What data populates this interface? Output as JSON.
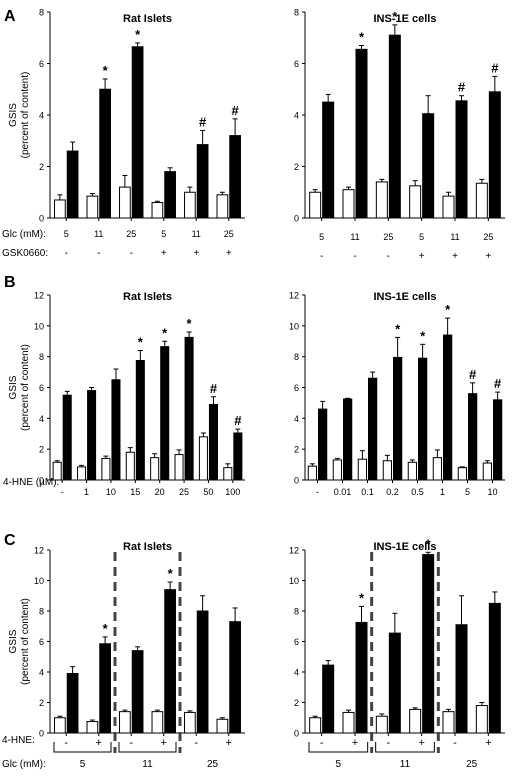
{
  "panels": [
    {
      "letter": "A"
    },
    {
      "letter": "B"
    },
    {
      "letter": "C"
    }
  ],
  "row_labels": {
    "A": [
      {
        "label": "Glc (mM):",
        "values": [
          "5",
          "11",
          "25",
          "5",
          "11",
          "25"
        ]
      },
      {
        "label": "GSK0660:",
        "values": [
          "-",
          "-",
          "-",
          "+",
          "+",
          "+"
        ]
      }
    ],
    "B": [
      {
        "label": "4-HNE (µM):"
      }
    ],
    "C": [
      {
        "label": "4-HNE:",
        "values": [
          "-",
          "+",
          "-",
          "+",
          "-",
          "+"
        ]
      },
      {
        "label": "Glc (mM):",
        "values": [
          "5",
          "11",
          "25"
        ]
      }
    ]
  },
  "chart_data": [
    {
      "id": "A-left",
      "type": "bar",
      "title": "Rat Islets",
      "ylabel": "GSIS\n(percent of content)",
      "ylim": [
        0,
        8
      ],
      "yticks": [
        0,
        2,
        4,
        6,
        8
      ],
      "categories": [
        "5",
        "11",
        "25",
        "5",
        "11",
        "25"
      ],
      "series": [
        {
          "color": "#ffffff",
          "values": [
            0.7,
            0.85,
            1.2,
            0.6,
            1.0,
            0.9
          ],
          "errors": [
            0.2,
            0.1,
            0.45,
            0.05,
            0.2,
            0.1
          ]
        },
        {
          "color": "#000000",
          "values": [
            2.6,
            5.0,
            6.65,
            1.8,
            2.85,
            3.2
          ],
          "errors": [
            0.35,
            0.4,
            0.15,
            0.15,
            0.55,
            0.65
          ]
        }
      ],
      "annotations": [
        "",
        "*",
        "*",
        "",
        "#",
        "#"
      ],
      "xticklabels": []
    },
    {
      "id": "A-right",
      "type": "bar",
      "title": "INS-1E cells",
      "ylim": [
        0,
        8
      ],
      "yticks": [
        0,
        2,
        4,
        6,
        8
      ],
      "categories": [
        "5",
        "11",
        "25",
        "5",
        "11",
        "25"
      ],
      "series": [
        {
          "color": "#ffffff",
          "values": [
            1.0,
            1.1,
            1.4,
            1.25,
            0.85,
            1.35
          ],
          "errors": [
            0.1,
            0.1,
            0.1,
            0.2,
            0.15,
            0.15
          ]
        },
        {
          "color": "#000000",
          "values": [
            4.5,
            6.55,
            7.1,
            4.05,
            4.55,
            4.9
          ],
          "errors": [
            0.3,
            0.15,
            0.4,
            0.7,
            0.2,
            0.6
          ]
        }
      ],
      "annotations": [
        "",
        "*",
        "*",
        "",
        "#",
        "#"
      ],
      "xticklabels": []
    },
    {
      "id": "B-left",
      "type": "bar",
      "title": "Rat Islets",
      "ylabel": "GSIS\n(percent of content)",
      "ylim": [
        0,
        12
      ],
      "yticks": [
        0,
        2,
        4,
        6,
        8,
        10,
        12
      ],
      "categories": [
        "-",
        "1",
        "10",
        "15",
        "20",
        "25",
        "50",
        "100"
      ],
      "series": [
        {
          "color": "#ffffff",
          "values": [
            1.15,
            0.85,
            1.4,
            1.8,
            1.45,
            1.65,
            2.8,
            0.8
          ],
          "errors": [
            0.1,
            0.1,
            0.15,
            0.3,
            0.25,
            0.3,
            0.25,
            0.25
          ]
        },
        {
          "color": "#000000",
          "values": [
            5.5,
            5.8,
            6.5,
            7.75,
            8.65,
            9.25,
            4.9,
            3.05
          ],
          "errors": [
            0.25,
            0.2,
            0.7,
            0.65,
            0.35,
            0.35,
            0.5,
            0.25
          ]
        }
      ],
      "annotations": [
        "",
        "",
        "",
        "*",
        "*",
        "*",
        "#",
        "#"
      ],
      "xticklabels": [
        "-",
        "1",
        "10",
        "15",
        "20",
        "25",
        "50",
        "100"
      ]
    },
    {
      "id": "B-right",
      "type": "bar",
      "title": "INS-1E cells",
      "ylim": [
        0,
        12
      ],
      "yticks": [
        0,
        2,
        4,
        6,
        8,
        10,
        12
      ],
      "categories": [
        "-",
        "0.01",
        "0.1",
        "0.2",
        "0.5",
        "1",
        "5",
        "10"
      ],
      "series": [
        {
          "color": "#ffffff",
          "values": [
            0.9,
            1.3,
            1.35,
            1.25,
            1.15,
            1.45,
            0.8,
            1.1
          ],
          "errors": [
            0.15,
            0.1,
            0.55,
            0.35,
            0.15,
            0.5,
            0.05,
            0.15
          ]
        },
        {
          "color": "#000000",
          "values": [
            4.6,
            5.25,
            6.6,
            7.95,
            7.9,
            9.4,
            5.6,
            5.2
          ],
          "errors": [
            0.5,
            0.05,
            0.4,
            1.3,
            0.9,
            1.1,
            0.7,
            0.5
          ]
        }
      ],
      "annotations": [
        "",
        "",
        "",
        "*",
        "*",
        "*",
        "#",
        "#"
      ],
      "xticklabels": [
        "-",
        "0.01",
        "0.1",
        "0.2",
        "0.5",
        "1",
        "5",
        "10"
      ]
    },
    {
      "id": "C-left",
      "type": "bar",
      "title": "Rat Islets",
      "ylabel": "GSIS\n(percent of content)",
      "ylim": [
        0,
        12
      ],
      "yticks": [
        0,
        2,
        4,
        6,
        8,
        10,
        12
      ],
      "categories": [
        "5 -",
        "5 +",
        "11 -",
        "11 +",
        "25 -",
        "25 +"
      ],
      "series": [
        {
          "color": "#ffffff",
          "values": [
            1.0,
            0.75,
            1.4,
            1.4,
            1.35,
            0.9
          ],
          "errors": [
            0.1,
            0.1,
            0.1,
            0.1,
            0.1,
            0.1
          ]
        },
        {
          "color": "#000000",
          "values": [
            3.9,
            5.85,
            5.4,
            9.4,
            8.0,
            7.3
          ],
          "errors": [
            0.45,
            0.45,
            0.25,
            0.5,
            1.0,
            0.9
          ]
        }
      ],
      "annotations": [
        "",
        "*",
        "",
        "*",
        "",
        ""
      ],
      "xticklabels": []
    },
    {
      "id": "C-right",
      "type": "bar",
      "title": "INS-1E cells",
      "ylim": [
        0,
        12
      ],
      "yticks": [
        0,
        2,
        4,
        6,
        8,
        10,
        12
      ],
      "categories": [
        "5 -",
        "5 +",
        "11 -",
        "11 +",
        "25 -",
        "25 +"
      ],
      "series": [
        {
          "color": "#ffffff",
          "values": [
            1.0,
            1.35,
            1.1,
            1.55,
            1.4,
            1.8
          ],
          "errors": [
            0.1,
            0.15,
            0.15,
            0.1,
            0.15,
            0.2
          ]
        },
        {
          "color": "#000000",
          "values": [
            4.45,
            7.25,
            6.55,
            11.7,
            7.1,
            8.5
          ],
          "errors": [
            0.3,
            1.05,
            1.3,
            0.15,
            1.9,
            0.75
          ]
        }
      ],
      "annotations": [
        "",
        "*",
        "",
        "*",
        "",
        ""
      ],
      "xticklabels": []
    }
  ]
}
